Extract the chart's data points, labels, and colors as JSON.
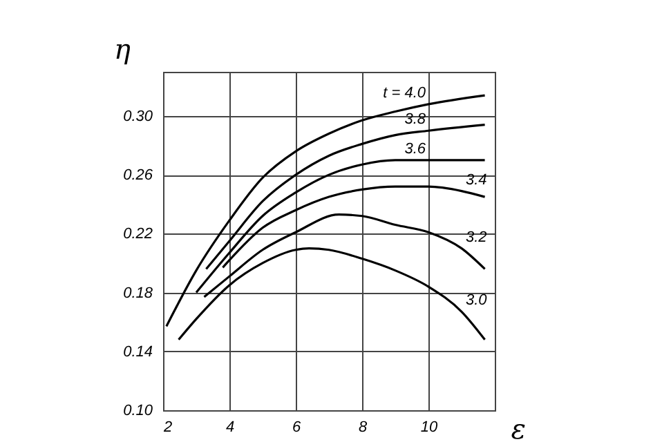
{
  "chart_data": {
    "type": "line",
    "xlabel": "ε",
    "ylabel": "η",
    "xlim": [
      2,
      12
    ],
    "xticks": [
      2,
      4,
      6,
      8,
      10
    ],
    "ylim": [
      0.1,
      0.33
    ],
    "yticks": [
      {
        "value": 0.1,
        "label": "0.10"
      },
      0.14,
      0.18,
      0.22,
      0.26,
      {
        "value": 0.3,
        "label": "0.30"
      }
    ],
    "grid": true,
    "line_style": "solid",
    "series": [
      {
        "name": "t = 4.0",
        "color": "#000000",
        "x": [
          2.1,
          3,
          4,
          5,
          6,
          7,
          8,
          9,
          10,
          11.7
        ],
        "values": [
          0.157,
          0.195,
          0.229,
          0.258,
          0.276,
          0.288,
          0.297,
          0.303,
          0.308,
          0.314
        ]
      },
      {
        "name": "3.8",
        "color": "#000000",
        "x": [
          3.3,
          4,
          5,
          6,
          7,
          8,
          9,
          10,
          11.7
        ],
        "values": [
          0.196,
          0.215,
          0.242,
          0.26,
          0.273,
          0.281,
          0.287,
          0.29,
          0.294
        ]
      },
      {
        "name": "3.6",
        "color": "#000000",
        "x": [
          3,
          4,
          5,
          6,
          7,
          8,
          9,
          10,
          11.7
        ],
        "values": [
          0.18,
          0.207,
          0.232,
          0.248,
          0.26,
          0.267,
          0.27,
          0.27,
          0.27
        ]
      },
      {
        "name": "3.4",
        "color": "#000000",
        "x": [
          3.8,
          4,
          5,
          6,
          7,
          8,
          9,
          10,
          11,
          11.7
        ],
        "values": [
          0.197,
          0.202,
          0.224,
          0.236,
          0.245,
          0.25,
          0.252,
          0.252,
          0.249,
          0.245
        ]
      },
      {
        "name": "3.2",
        "color": "#000000",
        "x": [
          3.24,
          4,
          5,
          6,
          7.3,
          8,
          9,
          10,
          11,
          11.7
        ],
        "values": [
          0.177,
          0.191,
          0.209,
          0.221,
          0.233,
          0.232,
          0.226,
          0.221,
          0.21,
          0.196
        ]
      },
      {
        "name": "3.0",
        "color": "#000000",
        "x": [
          2.47,
          3,
          4,
          5,
          6,
          6.4,
          7,
          8,
          9,
          10,
          11,
          11.7
        ],
        "values": [
          0.148,
          0.162,
          0.185,
          0.2,
          0.209,
          0.21,
          0.209,
          0.203,
          0.195,
          0.184,
          0.167,
          0.148
        ]
      }
    ]
  }
}
